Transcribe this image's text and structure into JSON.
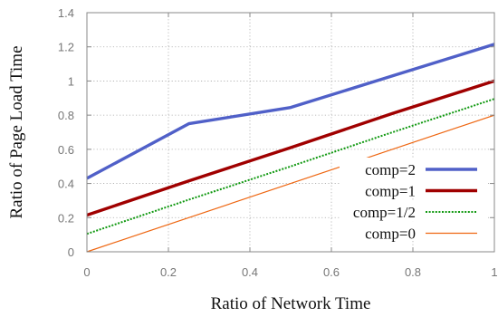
{
  "chart_data": {
    "type": "line",
    "title": "",
    "xlabel": "Ratio of Network Time",
    "ylabel": "Ratio of Page Load Time",
    "xlim": [
      0,
      1
    ],
    "ylim": [
      0,
      1.4
    ],
    "xticks": [
      0,
      0.2,
      0.4,
      0.6,
      0.8,
      1
    ],
    "yticks": [
      0,
      0.2,
      0.4,
      0.6,
      0.8,
      1,
      1.2,
      1.4
    ],
    "xtick_labels": [
      "0",
      "0.2",
      "0.4",
      "0.6",
      "0.8",
      "1"
    ],
    "ytick_labels": [
      "0",
      "0.2",
      "0.4",
      "0.6",
      "0.8",
      "1",
      "1.2",
      "1.4"
    ],
    "grid": true,
    "legend_position": "bottom-right",
    "series": [
      {
        "name": "comp=2",
        "color": "#5060c8",
        "style": "solid",
        "weight": "thick",
        "x": [
          0,
          0.25,
          0.5,
          0.75,
          1
        ],
        "y": [
          0.43,
          0.75,
          0.845,
          1.03,
          1.215
        ]
      },
      {
        "name": "comp=1",
        "color": "#a00000",
        "style": "solid",
        "weight": "thick",
        "x": [
          0,
          0.25,
          0.5,
          0.75,
          1
        ],
        "y": [
          0.215,
          0.415,
          0.61,
          0.81,
          1.0
        ]
      },
      {
        "name": "comp=1/2",
        "color": "#119911",
        "style": "dotted",
        "weight": "medium",
        "x": [
          0,
          0.25,
          0.5,
          0.75,
          1
        ],
        "y": [
          0.105,
          0.305,
          0.5,
          0.7,
          0.895
        ]
      },
      {
        "name": "comp=0",
        "color": "#ee6611",
        "style": "solid",
        "weight": "thin",
        "x": [
          0,
          0.25,
          0.5,
          0.75,
          1
        ],
        "y": [
          0.0,
          0.2,
          0.4,
          0.6,
          0.8
        ]
      }
    ]
  }
}
